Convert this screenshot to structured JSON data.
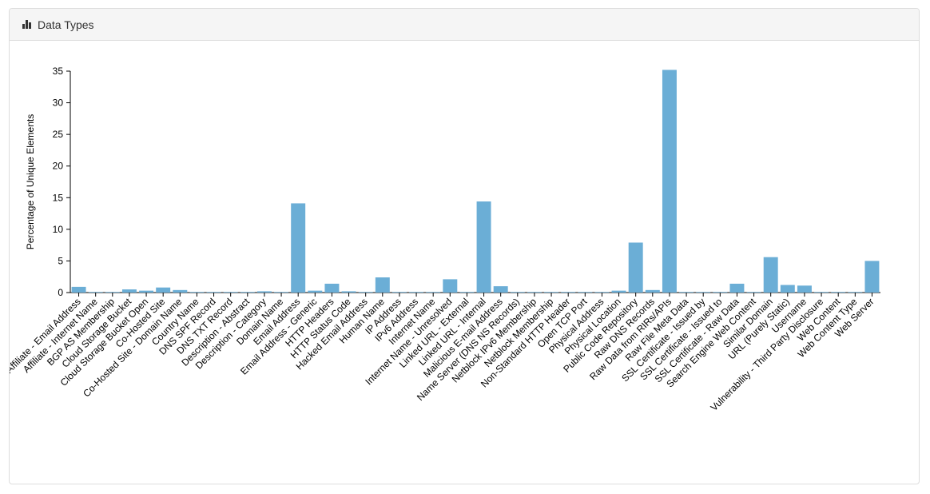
{
  "panel": {
    "title": "Data Types",
    "icon": "bar-chart-icon"
  },
  "chart_data": {
    "type": "bar",
    "ylabel": "Percentage of Unique Elements",
    "ylim": [
      0,
      35
    ],
    "yticks": [
      0,
      5,
      10,
      15,
      20,
      25,
      30,
      35
    ],
    "color": "#6baed6",
    "categories": [
      "Affiliate - Email Address",
      "Affiliate - Internet Name",
      "BGP AS Membership",
      "Cloud Storage Bucket",
      "Cloud Storage Bucket Open",
      "Co-Hosted Site",
      "Co-Hosted Site - Domain Name",
      "Country Name",
      "DNS SPF Record",
      "DNS TXT Record",
      "Description - Abstract",
      "Description - Category",
      "Domain Name",
      "Email Address",
      "Email Address - Generic",
      "HTTP Headers",
      "HTTP Status Code",
      "Hacked Email Address",
      "Human Name",
      "IP Address",
      "IPv6 Address",
      "Internet Name",
      "Internet Name - Unresolved",
      "Linked URL - External",
      "Linked URL - Internal",
      "Malicious E-mail Address",
      "Name Server (DNS NS Records)",
      "Netblock IPv6 Membership",
      "Netblock Membership",
      "Non-Standard HTTP Header",
      "Open TCP Port",
      "Physical Address",
      "Physical Location",
      "Public Code Repository",
      "Raw DNS Records",
      "Raw Data from RIRs/APIs",
      "Raw File Meta Data",
      "SSL Certificate - Issued by",
      "SSL Certificate - Issued to",
      "SSL Certificate - Raw Data",
      "Search Engine Web Content",
      "Similar Domain",
      "URL (Purely Static)",
      "Username",
      "Vulnerability - Third Party Disclosure",
      "Web Content",
      "Web Content Type",
      "Web Server"
    ],
    "values": [
      0.9,
      0.1,
      0.1,
      0.5,
      0.3,
      0.8,
      0.4,
      0.1,
      0.1,
      0.1,
      0.1,
      0.2,
      0.1,
      14.1,
      0.3,
      1.4,
      0.2,
      0.1,
      2.4,
      0.1,
      0.1,
      0.1,
      2.1,
      0.1,
      14.4,
      1.0,
      0.1,
      0.1,
      0.1,
      0.1,
      0.1,
      0.1,
      0.3,
      7.9,
      0.4,
      35.2,
      0.1,
      0.1,
      0.1,
      1.4,
      0.1,
      5.6,
      1.2,
      1.1,
      0.1,
      0.1,
      0.1,
      5.0
    ]
  }
}
